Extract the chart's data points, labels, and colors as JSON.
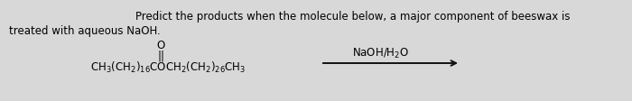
{
  "background_color": "#d8d8d8",
  "title_line1": "Predict the products when the molecule below, a major component of beeswax is",
  "title_line2": "treated with aqueous NaOH.",
  "title_fontsize": 8.5,
  "molecule_text": "CH$_3$(CH$_2$)$_{16}$COCH$_2$(CH$_2$)$_{26}$CH$_3$",
  "molecule_fontsize": 8.5,
  "carbonyl_o": "O",
  "double_bond": "||",
  "reagent_text": "NaOH/H$_2$O",
  "reagent_fontsize": 8.5,
  "arrow_color": "#111111"
}
